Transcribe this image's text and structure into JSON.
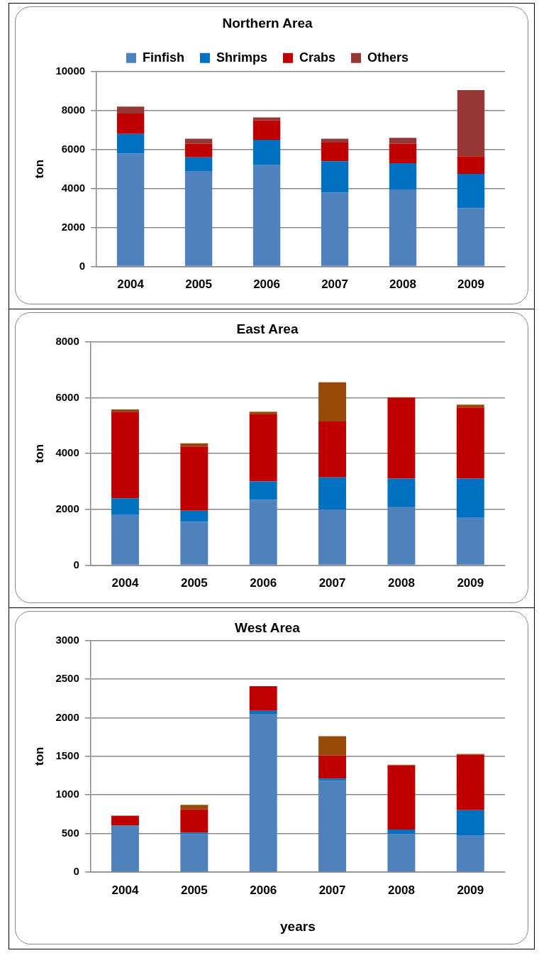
{
  "chart_data": [
    {
      "type": "bar",
      "title": "Northern Area",
      "ylabel": "ton",
      "categories": [
        "2004",
        "2005",
        "2006",
        "2007",
        "2008",
        "2009"
      ],
      "stacked": true,
      "grid": "y",
      "legend": "top",
      "ylim": [
        0,
        10000
      ],
      "yticks": [
        0,
        2000,
        4000,
        6000,
        8000,
        10000
      ],
      "series": [
        {
          "name": "Finfish",
          "color": "#4f81bd",
          "values": [
            5800,
            4900,
            5200,
            3800,
            3950,
            3000
          ]
        },
        {
          "name": "Shrimps",
          "color": "#0070c0",
          "values": [
            1000,
            700,
            1300,
            1600,
            1350,
            1750
          ]
        },
        {
          "name": "Crabs",
          "color": "#c00000",
          "values": [
            1050,
            700,
            1000,
            950,
            1000,
            900
          ]
        },
        {
          "name": "Others",
          "color": "#953735",
          "values": [
            350,
            250,
            150,
            200,
            300,
            3400
          ]
        }
      ]
    },
    {
      "type": "bar",
      "title": "East Area",
      "ylabel": "ton",
      "categories": [
        "2004",
        "2005",
        "2006",
        "2007",
        "2008",
        "2009"
      ],
      "stacked": true,
      "grid": "y",
      "ylim": [
        0,
        8000
      ],
      "yticks": [
        0,
        2000,
        4000,
        6000,
        8000
      ],
      "series": [
        {
          "color": "#4f81bd",
          "values": [
            1800,
            1550,
            2350,
            2000,
            2100,
            1700
          ]
        },
        {
          "color": "#0070c0",
          "values": [
            600,
            400,
            650,
            1150,
            1000,
            1400
          ]
        },
        {
          "color": "#c00000",
          "values": [
            3100,
            2300,
            2400,
            2000,
            2900,
            2550
          ]
        },
        {
          "color": "#984807",
          "values": [
            80,
            120,
            100,
            1400,
            20,
            100
          ]
        }
      ]
    },
    {
      "type": "bar",
      "title": "West Area",
      "ylabel": "ton",
      "xlabel": "years",
      "categories": [
        "2004",
        "2005",
        "2006",
        "2007",
        "2008",
        "2009"
      ],
      "stacked": true,
      "grid": "y",
      "ylim": [
        0,
        3000
      ],
      "yticks": [
        0,
        500,
        1000,
        1500,
        2000,
        2500,
        3000
      ],
      "series": [
        {
          "color": "#4f81bd",
          "values": [
            590,
            490,
            2050,
            1180,
            490,
            470
          ]
        },
        {
          "color": "#0070c0",
          "values": [
            10,
            20,
            40,
            30,
            60,
            330
          ]
        },
        {
          "color": "#c00000",
          "values": [
            130,
            300,
            320,
            300,
            830,
            720
          ]
        },
        {
          "color": "#984807",
          "values": [
            0,
            60,
            0,
            250,
            10,
            10
          ]
        }
      ]
    }
  ]
}
